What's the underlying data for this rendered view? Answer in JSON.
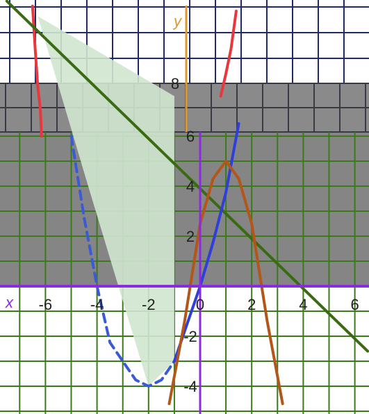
{
  "chart_data": {
    "type": "line",
    "title": "",
    "x_axis_label": "x",
    "y_axis_label": "y",
    "x_ticks": [
      "-6",
      "-4",
      "-2",
      "0",
      "2",
      "4",
      "6"
    ],
    "y_ticks": [
      "-4",
      "-2",
      "2",
      "4",
      "6",
      "8"
    ],
    "xlim": [
      -7.5,
      6.5
    ],
    "grid": true,
    "series": [
      {
        "type": "function",
        "expr": "steep red curve, upper left",
        "points": [
          [
            -6.5,
            11.2
          ],
          [
            -6.4,
            9.5
          ],
          [
            -6.3,
            8.0
          ],
          [
            -6.2,
            7.1
          ],
          [
            -6.15,
            6.0
          ]
        ],
        "color": "#e8383d"
      },
      {
        "type": "function",
        "expr": "steep red curve, upper center",
        "points": [
          [
            0.8,
            7.6
          ],
          [
            1.0,
            8.5
          ],
          [
            1.2,
            9.5
          ],
          [
            1.4,
            11.0
          ]
        ],
        "color": "#e8383d"
      },
      {
        "type": "line",
        "expr": "descending straight line",
        "points": [
          [
            -7.5,
            11.4
          ],
          [
            6.5,
            -2.6
          ]
        ],
        "color": "#3a6b12"
      },
      {
        "type": "parabola",
        "expr": "dashed blue parabola, vertex near (-2, -4)",
        "points": [
          [
            -5,
            6.0
          ],
          [
            -4.5,
            2.75
          ],
          [
            -4,
            0.0
          ],
          [
            -3.5,
            -2.25
          ],
          [
            -3,
            -3.0
          ],
          [
            -2.5,
            -3.75
          ],
          [
            -2,
            -4.0
          ],
          [
            -1.5,
            -3.75
          ],
          [
            -1,
            -3.0
          ]
        ],
        "color": "#3b5bd6",
        "dashed": true
      },
      {
        "type": "function",
        "expr": "solid blue curve through origin",
        "points": [
          [
            -1.0,
            -3.0
          ],
          [
            -0.5,
            -1.5
          ],
          [
            0.0,
            0.0
          ],
          [
            0.5,
            1.75
          ],
          [
            1.0,
            3.75
          ],
          [
            1.5,
            6.5
          ]
        ],
        "color": "#2f3fd8"
      },
      {
        "type": "parabola",
        "expr": "brown parabola, vertex near (1, 5)",
        "points": [
          [
            -1.2,
            -4.7
          ],
          [
            -0.6,
            -1.4
          ],
          [
            0.0,
            2.5
          ],
          [
            0.5,
            4.3
          ],
          [
            1.0,
            5.0
          ],
          [
            1.5,
            4.3
          ],
          [
            2.0,
            2.5
          ],
          [
            2.6,
            -1.4
          ],
          [
            3.2,
            -4.7
          ]
        ],
        "color": "#b2561a"
      }
    ],
    "regions": [
      {
        "name": "shaded region between descending line and dashed parabola",
        "color": "#cfe5cf",
        "polygon": [
          [
            -6.3,
            10.8
          ],
          [
            -4.4,
            4.2
          ],
          [
            -2.0,
            -4.0
          ],
          [
            -1.0,
            -3.0
          ],
          [
            -1.0,
            7.6
          ]
        ]
      }
    ]
  }
}
